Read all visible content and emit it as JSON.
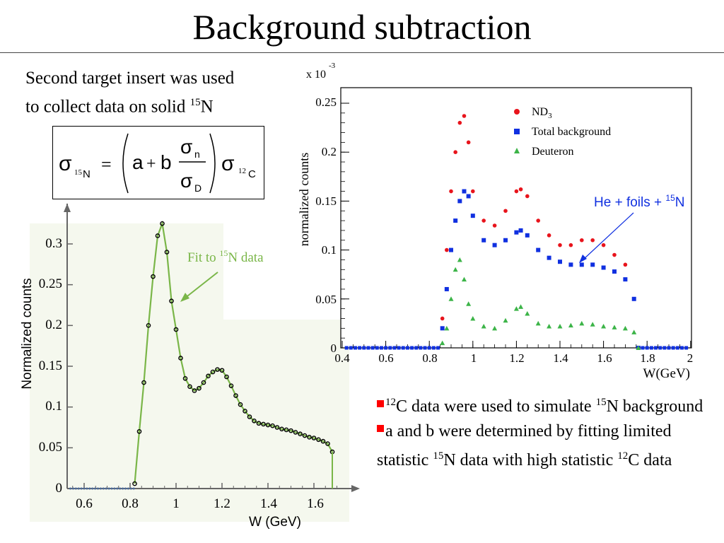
{
  "slide": {
    "title": "Background subtraction",
    "intro": {
      "line1": "Second target insert was used",
      "line2_text": "to collect data on solid ",
      "line2_sup": "15",
      "line2_end": "N"
    },
    "formula": {
      "sigma": "σ",
      "sub_lhs_sup": "15",
      "sub_lhs": "N",
      "equals": "=",
      "a": "a",
      "plus": "+",
      "b": "b",
      "num_sub": "n",
      "den_sub": "D",
      "sub_rhs_sup": "12",
      "sub_rhs": "C"
    },
    "bullets": [
      {
        "sup1": "12",
        "text1": "C data were used to simulate ",
        "sup2": "15",
        "text2": "N background"
      },
      {
        "text1": "a and b were determined by fitting limited statistic ",
        "sup2": "15",
        "text2": "N data with high statistic ",
        "sup3": "12",
        "text3": "C data"
      }
    ],
    "colors": {
      "bullet_marker": "#ff0000",
      "left_panel_bg": "#f5f8ee",
      "fit_line": "#7ab648",
      "nd3": "#e8141c",
      "background": "#1030e0",
      "deuteron": "#3cb448",
      "arrow_blue": "#1030e0",
      "fit_label_color": "#7ab648"
    }
  },
  "chart_data": [
    {
      "type": "line",
      "xlabel": "W (GeV)",
      "ylabel": "Normalized counts",
      "xlim": [
        0.52,
        1.78
      ],
      "ylim": [
        0,
        0.33
      ],
      "xticks": [
        "0.6",
        "0.8",
        "1",
        "1.2",
        "1.4",
        "1.6"
      ],
      "yticks": [
        "0",
        "0.05",
        "0.1",
        "0.15",
        "0.2",
        "0.25",
        "0.3"
      ],
      "annotation": {
        "text": "Fit to ",
        "sup": "15",
        "text_end": "N data"
      },
      "series": [
        {
          "x": [
            0.82,
            0.84,
            0.86,
            0.88,
            0.9,
            0.92,
            0.94,
            0.96,
            0.98,
            1.0,
            1.02,
            1.04,
            1.06,
            1.08,
            1.1,
            1.12,
            1.14,
            1.16,
            1.18,
            1.2,
            1.22,
            1.24,
            1.26,
            1.28,
            1.3,
            1.32,
            1.34,
            1.36,
            1.38,
            1.4,
            1.42,
            1.44,
            1.46,
            1.48,
            1.5,
            1.52,
            1.54,
            1.56,
            1.58,
            1.6,
            1.62,
            1.64,
            1.66,
            1.68
          ],
          "y": [
            0.006,
            0.07,
            0.13,
            0.2,
            0.26,
            0.31,
            0.325,
            0.29,
            0.23,
            0.195,
            0.16,
            0.135,
            0.125,
            0.12,
            0.123,
            0.13,
            0.138,
            0.143,
            0.146,
            0.145,
            0.137,
            0.126,
            0.114,
            0.103,
            0.095,
            0.088,
            0.083,
            0.08,
            0.079,
            0.078,
            0.077,
            0.075,
            0.073,
            0.072,
            0.071,
            0.069,
            0.067,
            0.065,
            0.063,
            0.062,
            0.06,
            0.058,
            0.055,
            0.045
          ]
        }
      ]
    },
    {
      "type": "scatter",
      "xlabel": "W(GeV)",
      "ylabel": "normalized counts",
      "scale_label": {
        "text": "x 10",
        "sup": "-3"
      },
      "xlim": [
        0.4,
        2.0
      ],
      "ylim": [
        0,
        0.26
      ],
      "xticks": [
        "0.4",
        "0.6",
        "0.8",
        "1",
        "1.2",
        "1.4",
        "1.6",
        "1.8",
        "2"
      ],
      "yticks": [
        "0",
        "0.05",
        "0.1",
        "0.15",
        "0.2",
        "0.25"
      ],
      "legend": [
        {
          "label": "ND",
          "sub": "3"
        },
        {
          "label": "Total background"
        },
        {
          "label": "Deuteron"
        }
      ],
      "annotation": {
        "text": "He + foils + ",
        "sup": "15",
        "text_end": "N"
      },
      "series": [
        {
          "name": "ND3",
          "x": [
            0.86,
            0.88,
            0.9,
            0.92,
            0.94,
            0.96,
            0.98,
            1.0,
            1.05,
            1.1,
            1.15,
            1.2,
            1.22,
            1.25,
            1.3,
            1.35,
            1.4,
            1.45,
            1.5,
            1.55,
            1.6,
            1.65,
            1.7,
            1.74,
            1.76
          ],
          "y": [
            0.03,
            0.1,
            0.16,
            0.2,
            0.23,
            0.237,
            0.21,
            0.16,
            0.13,
            0.125,
            0.14,
            0.16,
            0.162,
            0.155,
            0.13,
            0.115,
            0.105,
            0.105,
            0.11,
            0.11,
            0.105,
            0.095,
            0.085,
            0.05,
            0.0
          ]
        },
        {
          "name": "Total background",
          "x": [
            0.86,
            0.88,
            0.9,
            0.92,
            0.94,
            0.96,
            0.98,
            1.0,
            1.05,
            1.1,
            1.15,
            1.2,
            1.22,
            1.25,
            1.3,
            1.35,
            1.4,
            1.45,
            1.5,
            1.55,
            1.6,
            1.65,
            1.7,
            1.74,
            1.76
          ],
          "y": [
            0.02,
            0.06,
            0.1,
            0.13,
            0.15,
            0.16,
            0.155,
            0.135,
            0.11,
            0.105,
            0.11,
            0.118,
            0.12,
            0.115,
            0.1,
            0.092,
            0.088,
            0.085,
            0.085,
            0.085,
            0.082,
            0.078,
            0.07,
            0.05,
            0.0
          ]
        },
        {
          "name": "Deuteron",
          "x": [
            0.86,
            0.88,
            0.9,
            0.92,
            0.94,
            0.96,
            0.98,
            1.0,
            1.05,
            1.1,
            1.15,
            1.2,
            1.22,
            1.25,
            1.3,
            1.35,
            1.4,
            1.45,
            1.5,
            1.55,
            1.6,
            1.65,
            1.7,
            1.74,
            1.76
          ],
          "y": [
            0.005,
            0.02,
            0.05,
            0.08,
            0.09,
            0.07,
            0.045,
            0.03,
            0.022,
            0.02,
            0.028,
            0.04,
            0.042,
            0.035,
            0.025,
            0.022,
            0.022,
            0.023,
            0.025,
            0.024,
            0.022,
            0.021,
            0.02,
            0.016,
            0.0
          ]
        }
      ]
    }
  ]
}
